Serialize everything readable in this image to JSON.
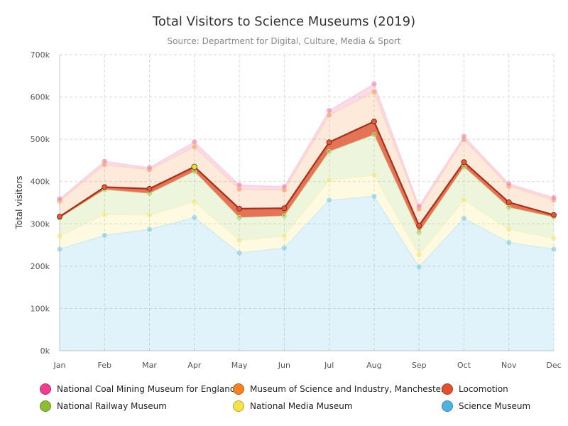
{
  "title": "Total Visitors to Science Museums (2019)",
  "subtitle": "Source: Department for Digital, Culture, Media & Sport",
  "chart_data": {
    "type": "area",
    "stacked": true,
    "title": "Total Visitors to Science Museums (2019)",
    "subtitle": "Source: Department for Digital, Culture, Media & Sport",
    "xlabel": "",
    "ylabel": "Total visitors",
    "ylim": [
      0,
      700000
    ],
    "yticks": [
      0,
      100000,
      200000,
      300000,
      400000,
      500000,
      600000,
      700000
    ],
    "ytick_labels": [
      "0k",
      "100k",
      "200k",
      "300k",
      "400k",
      "500k",
      "600k",
      "700k"
    ],
    "categories": [
      "Jan",
      "Feb",
      "Mar",
      "Apr",
      "May",
      "Jun",
      "Jul",
      "Aug",
      "Sep",
      "Oct",
      "Nov",
      "Dec"
    ],
    "grid": true,
    "legend_position": "bottom",
    "series": [
      {
        "name": "Science Museum",
        "color": "#5bbce4",
        "values": [
          240000,
          273000,
          287000,
          315000,
          231000,
          243000,
          356000,
          365000,
          198000,
          313000,
          256000,
          240000
        ]
      },
      {
        "name": "National Media Museum",
        "color": "#f5e35a",
        "values": [
          31000,
          49000,
          34000,
          37000,
          30000,
          28000,
          47000,
          50000,
          29000,
          43000,
          31000,
          26000
        ]
      },
      {
        "name": "National Railway Museum",
        "color": "#9bc53d",
        "values": [
          43000,
          59000,
          51000,
          72000,
          54000,
          48000,
          68000,
          96000,
          53000,
          79000,
          52000,
          50000
        ]
      },
      {
        "name": "Locomotion",
        "color": "#e05a3a",
        "values": [
          3000,
          6000,
          11000,
          11000,
          21000,
          18000,
          22000,
          31000,
          16000,
          11000,
          12000,
          5000
        ]
      },
      {
        "name": "Museum of Science and Industry, Manchester",
        "color": "#f58d3a",
        "values": [
          37000,
          53000,
          45000,
          47000,
          46000,
          43000,
          64000,
          70000,
          39000,
          53000,
          38000,
          35000
        ]
      },
      {
        "name": "National Coal Mining Museum for England",
        "color": "#ee5a9a",
        "values": [
          5000,
          8000,
          5000,
          12000,
          10000,
          8000,
          11000,
          19000,
          7000,
          8000,
          6000,
          6000
        ]
      }
    ]
  },
  "legend": [
    {
      "label": "National Coal Mining Museum for England",
      "color": "#ee3f8c"
    },
    {
      "label": "Museum of Science and Industry, Manchester",
      "color": "#f58224"
    },
    {
      "label": "Locomotion",
      "color": "#e0522f"
    },
    {
      "label": "National Railway Museum",
      "color": "#8dbd34"
    },
    {
      "label": "National Media Museum",
      "color": "#f3e24a"
    },
    {
      "label": "Science Museum",
      "color": "#4fb3e0"
    }
  ]
}
